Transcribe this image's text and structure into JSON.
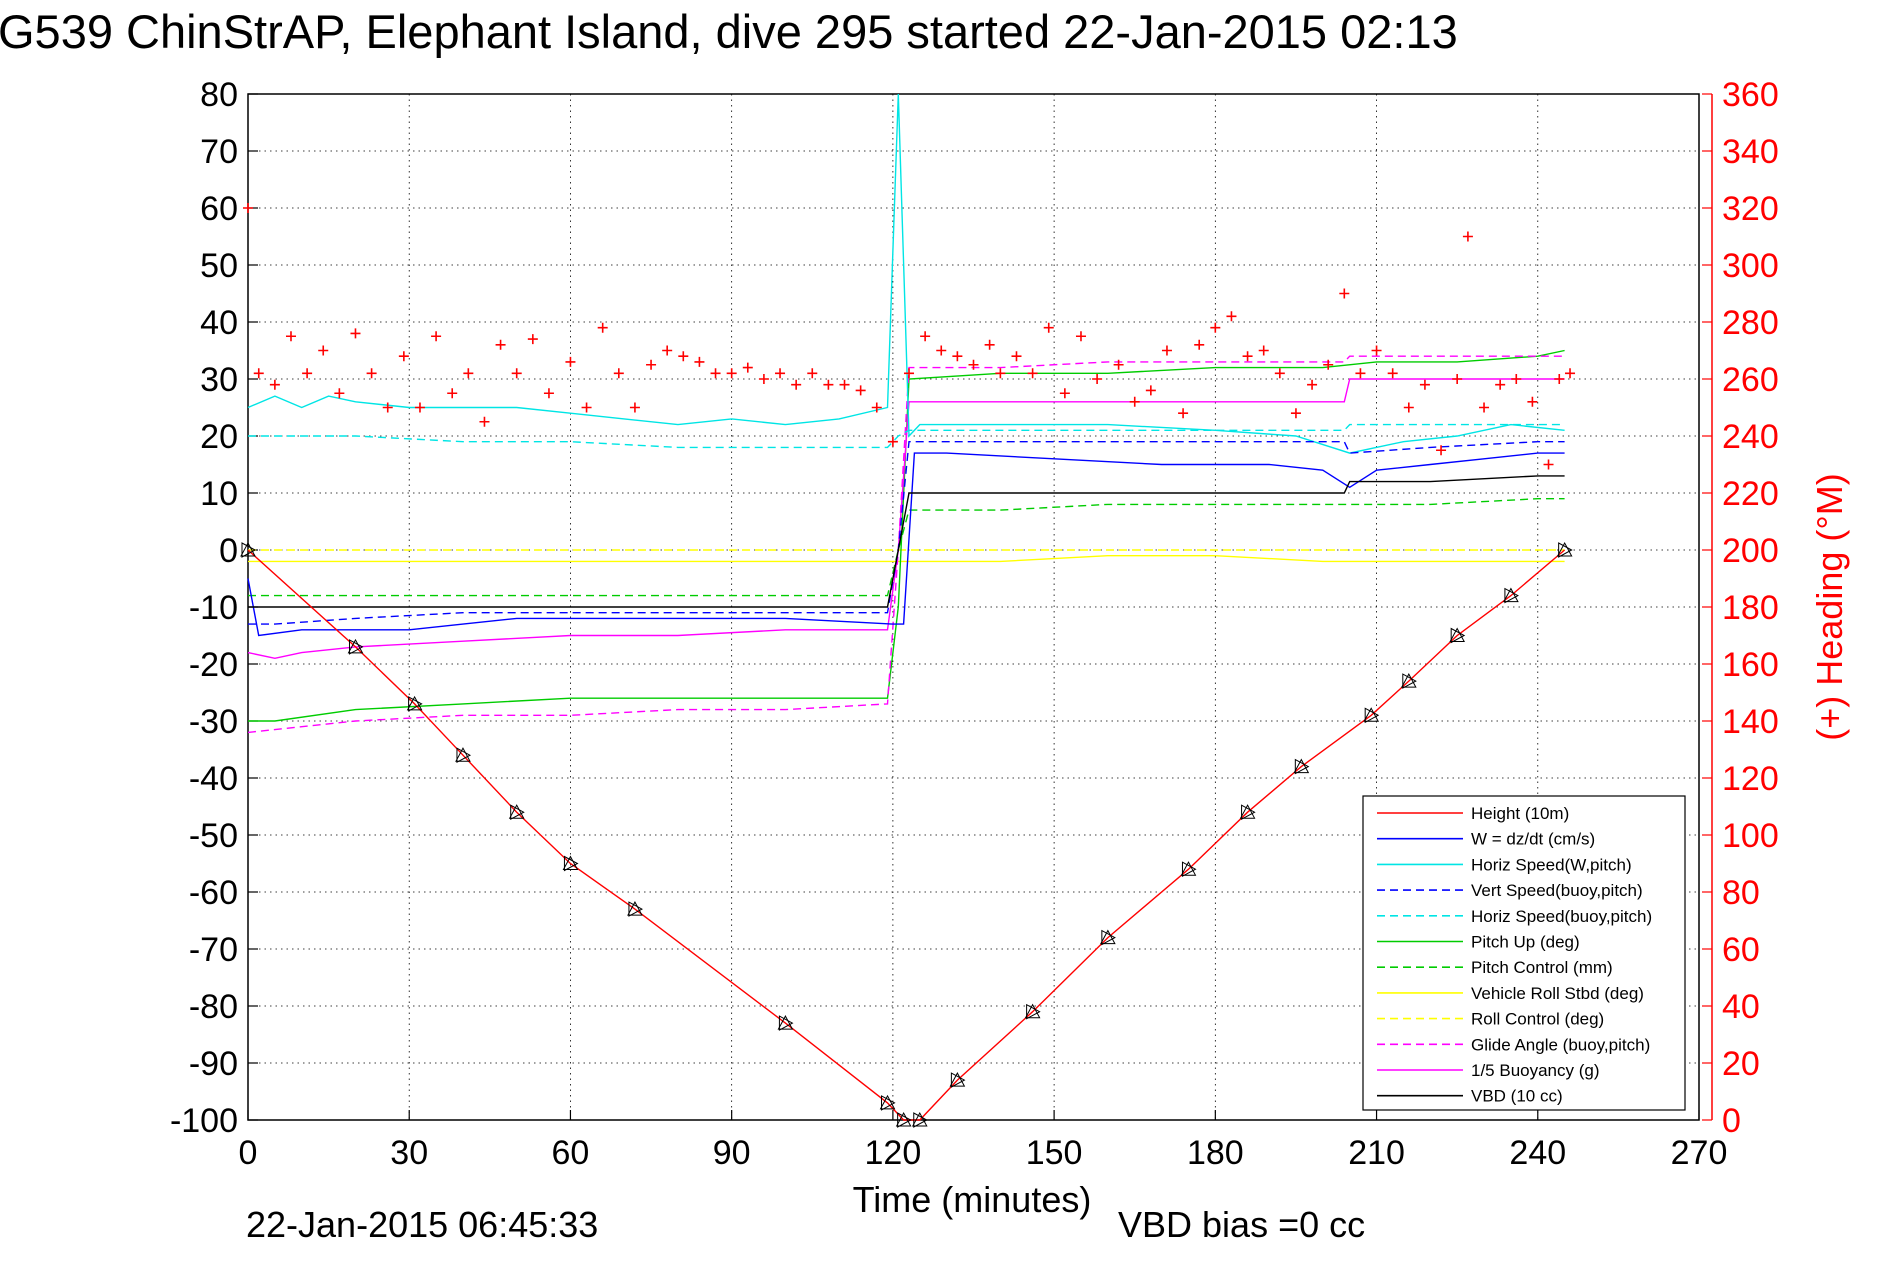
{
  "title": "G539 ChinStrAP, Elephant Island, dive 295 started 22-Jan-2015 02:13",
  "footer": {
    "timestamp": "22-Jan-2015 06:45:33",
    "vbd_bias": "VBD bias =0 cc"
  },
  "chart_data": {
    "type": "line",
    "xlabel": "Time (minutes)",
    "ylabel_right": "(+) Heading (°M)",
    "xlim": [
      0,
      270
    ],
    "ylim": [
      -100,
      80
    ],
    "ylim_right": [
      0,
      360
    ],
    "x_ticks": [
      "0",
      "30",
      "60",
      "90",
      "120",
      "150",
      "180",
      "210",
      "240",
      "270"
    ],
    "y_ticks": [
      "80",
      "70",
      "60",
      "50",
      "40",
      "30",
      "20",
      "10",
      "0",
      "-10",
      "-20",
      "-30",
      "-40",
      "-50",
      "-60",
      "-70",
      "-80",
      "-90",
      "-100"
    ],
    "y_ticks_right": [
      "360",
      "340",
      "320",
      "300",
      "280",
      "260",
      "240",
      "220",
      "200",
      "180",
      "160",
      "140",
      "120",
      "100",
      "80",
      "60",
      "40",
      "20",
      "0"
    ],
    "grid": true,
    "legend_position": "bottom-right",
    "colors": {
      "height": "#ff0000",
      "w": "#0000ff",
      "horiz_speed": "#00e5e5",
      "vert_speed_model": "#0000ff",
      "horiz_speed_model": "#00e5e5",
      "pitch": "#00cc00",
      "pitch_control": "#00cc00",
      "roll": "#ffff00",
      "roll_control": "#ffff00",
      "glide_angle": "#ff00ff",
      "buoyancy": "#ff00ff",
      "vbd": "#000000",
      "heading": "#ff0000"
    },
    "series": [
      {
        "key": "height",
        "name": "Height (10m)",
        "style": "solid",
        "points": [
          [
            0,
            0
          ],
          [
            20,
            -17
          ],
          [
            31,
            -27
          ],
          [
            40,
            -36
          ],
          [
            50,
            -46
          ],
          [
            60,
            -55
          ],
          [
            72,
            -63
          ],
          [
            100,
            -83
          ],
          [
            119,
            -97
          ],
          [
            122,
            -100
          ],
          [
            125,
            -100
          ],
          [
            132,
            -93
          ],
          [
            146,
            -81
          ],
          [
            160,
            -68
          ],
          [
            175,
            -56
          ],
          [
            186,
            -46
          ],
          [
            196,
            -38
          ],
          [
            209,
            -29
          ],
          [
            216,
            -23
          ],
          [
            225,
            -15
          ],
          [
            235,
            -8
          ],
          [
            245,
            0
          ]
        ]
      },
      {
        "key": "w",
        "name": "W = dz/dt (cm/s)",
        "style": "solid",
        "points": [
          [
            0,
            -5
          ],
          [
            2,
            -15
          ],
          [
            10,
            -14
          ],
          [
            20,
            -14
          ],
          [
            30,
            -14
          ],
          [
            40,
            -13
          ],
          [
            50,
            -12
          ],
          [
            60,
            -12
          ],
          [
            80,
            -12
          ],
          [
            100,
            -12
          ],
          [
            120,
            -13
          ],
          [
            122,
            -13
          ],
          [
            124,
            17
          ],
          [
            130,
            17
          ],
          [
            150,
            16
          ],
          [
            170,
            15
          ],
          [
            190,
            15
          ],
          [
            200,
            14
          ],
          [
            205,
            11
          ],
          [
            210,
            14
          ],
          [
            220,
            15
          ],
          [
            230,
            16
          ],
          [
            240,
            17
          ],
          [
            245,
            17
          ]
        ]
      },
      {
        "key": "horiz_speed",
        "name": "Horiz Speed(W,pitch)",
        "style": "solid",
        "points": [
          [
            0,
            25
          ],
          [
            5,
            27
          ],
          [
            10,
            25
          ],
          [
            15,
            27
          ],
          [
            20,
            26
          ],
          [
            30,
            25
          ],
          [
            40,
            25
          ],
          [
            50,
            25
          ],
          [
            60,
            24
          ],
          [
            70,
            23
          ],
          [
            80,
            22
          ],
          [
            90,
            23
          ],
          [
            100,
            22
          ],
          [
            110,
            23
          ],
          [
            119,
            25
          ],
          [
            121,
            80
          ],
          [
            123,
            20
          ],
          [
            125,
            22
          ],
          [
            140,
            22
          ],
          [
            160,
            22
          ],
          [
            180,
            21
          ],
          [
            195,
            20
          ],
          [
            205,
            17
          ],
          [
            215,
            19
          ],
          [
            225,
            20
          ],
          [
            235,
            22
          ],
          [
            245,
            21
          ]
        ]
      },
      {
        "key": "vert_speed_model",
        "name": "Vert Speed(buoy,pitch)",
        "style": "dashed",
        "points": [
          [
            0,
            -13
          ],
          [
            5,
            -13
          ],
          [
            20,
            -12
          ],
          [
            40,
            -11
          ],
          [
            60,
            -11
          ],
          [
            80,
            -11
          ],
          [
            100,
            -11
          ],
          [
            119,
            -11
          ],
          [
            121,
            0
          ],
          [
            123,
            19
          ],
          [
            140,
            19
          ],
          [
            160,
            19
          ],
          [
            180,
            19
          ],
          [
            200,
            19
          ],
          [
            204,
            19
          ],
          [
            205,
            17
          ],
          [
            220,
            18
          ],
          [
            240,
            19
          ],
          [
            245,
            19
          ]
        ]
      },
      {
        "key": "horiz_speed_model",
        "name": "Horiz Speed(buoy,pitch)",
        "style": "dashed",
        "points": [
          [
            0,
            20
          ],
          [
            20,
            20
          ],
          [
            40,
            19
          ],
          [
            60,
            19
          ],
          [
            80,
            18
          ],
          [
            100,
            18
          ],
          [
            119,
            18
          ],
          [
            121,
            20
          ],
          [
            123,
            21
          ],
          [
            140,
            21
          ],
          [
            160,
            21
          ],
          [
            180,
            21
          ],
          [
            200,
            21
          ],
          [
            204,
            21
          ],
          [
            205,
            22
          ],
          [
            220,
            22
          ],
          [
            240,
            22
          ],
          [
            245,
            22
          ]
        ]
      },
      {
        "key": "pitch",
        "name": "Pitch Up (deg)",
        "style": "solid",
        "points": [
          [
            0,
            -30
          ],
          [
            5,
            -30
          ],
          [
            20,
            -28
          ],
          [
            40,
            -27
          ],
          [
            60,
            -26
          ],
          [
            80,
            -26
          ],
          [
            100,
            -26
          ],
          [
            119,
            -26
          ],
          [
            121,
            -10
          ],
          [
            123,
            30
          ],
          [
            140,
            31
          ],
          [
            160,
            31
          ],
          [
            180,
            32
          ],
          [
            200,
            32
          ],
          [
            210,
            33
          ],
          [
            225,
            33
          ],
          [
            240,
            34
          ],
          [
            245,
            35
          ]
        ]
      },
      {
        "key": "pitch_control",
        "name": "Pitch Control (mm)",
        "style": "dashed",
        "points": [
          [
            0,
            -8
          ],
          [
            20,
            -8
          ],
          [
            40,
            -8
          ],
          [
            60,
            -8
          ],
          [
            80,
            -8
          ],
          [
            100,
            -8
          ],
          [
            119,
            -8
          ],
          [
            121,
            0
          ],
          [
            123,
            7
          ],
          [
            140,
            7
          ],
          [
            160,
            8
          ],
          [
            180,
            8
          ],
          [
            200,
            8
          ],
          [
            220,
            8
          ],
          [
            240,
            9
          ],
          [
            245,
            9
          ]
        ]
      },
      {
        "key": "roll",
        "name": "Vehicle Roll Stbd (deg)",
        "style": "solid",
        "points": [
          [
            0,
            -2
          ],
          [
            20,
            -2
          ],
          [
            40,
            -2
          ],
          [
            60,
            -2
          ],
          [
            80,
            -2
          ],
          [
            100,
            -2
          ],
          [
            119,
            -2
          ],
          [
            123,
            -2
          ],
          [
            140,
            -2
          ],
          [
            160,
            -1
          ],
          [
            180,
            -1
          ],
          [
            200,
            -2
          ],
          [
            220,
            -2
          ],
          [
            240,
            -2
          ],
          [
            245,
            -2
          ]
        ]
      },
      {
        "key": "roll_control",
        "name": "Roll Control (deg)",
        "style": "dashed",
        "points": [
          [
            0,
            0
          ],
          [
            245,
            0
          ]
        ]
      },
      {
        "key": "glide_angle",
        "name": "Glide Angle (buoy,pitch)",
        "style": "dashed",
        "points": [
          [
            0,
            -32
          ],
          [
            10,
            -31
          ],
          [
            20,
            -30
          ],
          [
            40,
            -29
          ],
          [
            60,
            -29
          ],
          [
            80,
            -28
          ],
          [
            100,
            -28
          ],
          [
            119,
            -27
          ],
          [
            121,
            0
          ],
          [
            123,
            32
          ],
          [
            140,
            32
          ],
          [
            160,
            33
          ],
          [
            180,
            33
          ],
          [
            200,
            33
          ],
          [
            204,
            33
          ],
          [
            205,
            34
          ],
          [
            220,
            34
          ],
          [
            240,
            34
          ],
          [
            245,
            34
          ]
        ]
      },
      {
        "key": "buoyancy",
        "name": "1/5 Buoyancy (g)",
        "style": "solid",
        "points": [
          [
            0,
            -18
          ],
          [
            5,
            -19
          ],
          [
            10,
            -18
          ],
          [
            20,
            -17
          ],
          [
            40,
            -16
          ],
          [
            60,
            -15
          ],
          [
            80,
            -15
          ],
          [
            100,
            -14
          ],
          [
            119,
            -14
          ],
          [
            121,
            0
          ],
          [
            123,
            26
          ],
          [
            140,
            26
          ],
          [
            160,
            26
          ],
          [
            180,
            26
          ],
          [
            200,
            26
          ],
          [
            204,
            26
          ],
          [
            205,
            30
          ],
          [
            220,
            30
          ],
          [
            240,
            30
          ],
          [
            245,
            30
          ]
        ]
      },
      {
        "key": "vbd",
        "name": "VBD (10 cc)",
        "style": "solid",
        "points": [
          [
            0,
            -10
          ],
          [
            20,
            -10
          ],
          [
            60,
            -10
          ],
          [
            100,
            -10
          ],
          [
            119,
            -10
          ],
          [
            121,
            0
          ],
          [
            123,
            10
          ],
          [
            140,
            10
          ],
          [
            160,
            10
          ],
          [
            180,
            10
          ],
          [
            200,
            10
          ],
          [
            204,
            10
          ],
          [
            205,
            12
          ],
          [
            220,
            12
          ],
          [
            240,
            13
          ],
          [
            245,
            13
          ]
        ]
      }
    ],
    "heading_series": {
      "name": "(+) Heading (°M)",
      "marker": "+",
      "points": [
        [
          0,
          320
        ],
        [
          2,
          262
        ],
        [
          5,
          258
        ],
        [
          8,
          275
        ],
        [
          11,
          262
        ],
        [
          14,
          270
        ],
        [
          17,
          255
        ],
        [
          20,
          276
        ],
        [
          23,
          262
        ],
        [
          26,
          250
        ],
        [
          29,
          268
        ],
        [
          32,
          250
        ],
        [
          35,
          275
        ],
        [
          38,
          255
        ],
        [
          41,
          262
        ],
        [
          44,
          245
        ],
        [
          47,
          272
        ],
        [
          50,
          262
        ],
        [
          53,
          274
        ],
        [
          56,
          255
        ],
        [
          60,
          266
        ],
        [
          63,
          250
        ],
        [
          66,
          278
        ],
        [
          69,
          262
        ],
        [
          72,
          250
        ],
        [
          75,
          265
        ],
        [
          78,
          270
        ],
        [
          81,
          268
        ],
        [
          84,
          266
        ],
        [
          87,
          262
        ],
        [
          90,
          262
        ],
        [
          93,
          264
        ],
        [
          96,
          260
        ],
        [
          99,
          262
        ],
        [
          102,
          258
        ],
        [
          105,
          262
        ],
        [
          108,
          258
        ],
        [
          111,
          258
        ],
        [
          114,
          256
        ],
        [
          117,
          250
        ],
        [
          120,
          238
        ],
        [
          123,
          262
        ],
        [
          126,
          275
        ],
        [
          129,
          270
        ],
        [
          132,
          268
        ],
        [
          135,
          265
        ],
        [
          138,
          272
        ],
        [
          140,
          262
        ],
        [
          143,
          268
        ],
        [
          146,
          262
        ],
        [
          149,
          278
        ],
        [
          152,
          255
        ],
        [
          155,
          275
        ],
        [
          158,
          260
        ],
        [
          162,
          265
        ],
        [
          165,
          252
        ],
        [
          168,
          256
        ],
        [
          171,
          270
        ],
        [
          174,
          248
        ],
        [
          177,
          272
        ],
        [
          180,
          278
        ],
        [
          183,
          282
        ],
        [
          186,
          268
        ],
        [
          189,
          270
        ],
        [
          192,
          262
        ],
        [
          195,
          248
        ],
        [
          198,
          258
        ],
        [
          201,
          265
        ],
        [
          204,
          290
        ],
        [
          207,
          262
        ],
        [
          210,
          270
        ],
        [
          213,
          262
        ],
        [
          216,
          250
        ],
        [
          219,
          258
        ],
        [
          222,
          235
        ],
        [
          225,
          260
        ],
        [
          227,
          310
        ],
        [
          230,
          250
        ],
        [
          233,
          258
        ],
        [
          236,
          260
        ],
        [
          239,
          252
        ],
        [
          242,
          230
        ],
        [
          244,
          260
        ],
        [
          246,
          262
        ]
      ]
    }
  }
}
